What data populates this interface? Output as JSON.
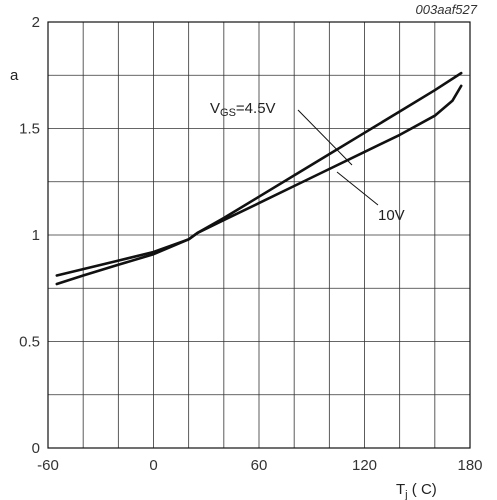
{
  "figure_id": "003aaf527",
  "chart_data": {
    "type": "line",
    "xlabel": "Tj ( C)",
    "xlabel_main": "T",
    "xlabel_sub": "j",
    "xlabel_rest": " ( C)",
    "ylabel": "a",
    "xlim": [
      -60,
      180
    ],
    "ylim": [
      0,
      2
    ],
    "x_ticks": [
      -60,
      0,
      60,
      120,
      180
    ],
    "y_ticks": [
      0,
      0.5,
      1,
      1.5,
      2
    ],
    "x_tick_labels": [
      "-60",
      "0",
      "60",
      "120",
      "180"
    ],
    "y_tick_labels": [
      "0",
      "0.5",
      "1",
      "1.5",
      "2"
    ],
    "grid": true,
    "series": [
      {
        "name": "VGS=4.5V",
        "label_main": "V",
        "label_sub": "GS",
        "label_rest": "=4.5V",
        "x": [
          -55,
          -40,
          -20,
          0,
          20,
          25,
          40,
          60,
          80,
          100,
          120,
          140,
          160,
          175
        ],
        "y": [
          0.77,
          0.81,
          0.86,
          0.91,
          0.98,
          1.01,
          1.08,
          1.18,
          1.28,
          1.38,
          1.48,
          1.58,
          1.68,
          1.76
        ]
      },
      {
        "name": "10V",
        "label_main": "10V",
        "x": [
          -55,
          -40,
          -20,
          0,
          20,
          25,
          40,
          60,
          80,
          100,
          120,
          140,
          160,
          170,
          175
        ],
        "y": [
          0.81,
          0.84,
          0.88,
          0.92,
          0.98,
          1.01,
          1.07,
          1.15,
          1.23,
          1.31,
          1.39,
          1.47,
          1.56,
          1.63,
          1.7
        ]
      }
    ]
  }
}
